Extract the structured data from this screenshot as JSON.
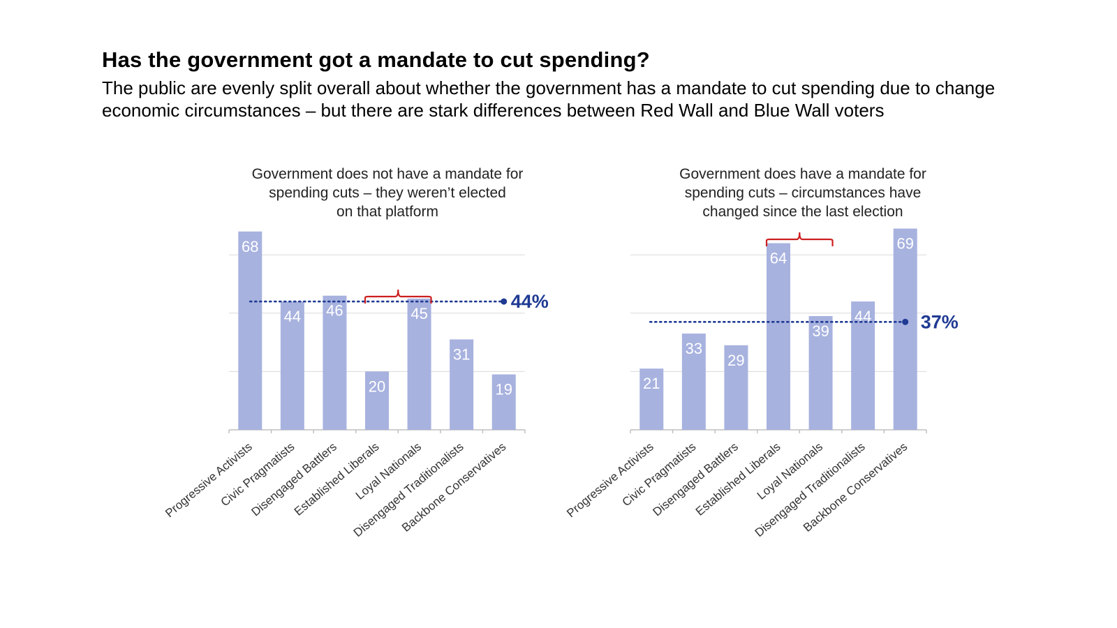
{
  "header": {
    "title": "Has the government got a mandate to cut spending?",
    "subtitle": "The public are evenly split overall about whether the government has a mandate to cut spending due to change economic circumstances – but there are stark differences between Red Wall and Blue Wall voters"
  },
  "colors": {
    "bar": "#a8b2df",
    "average_line": "#1f3a93",
    "bracket": "#cc1f1f",
    "gridline": "#d9d9d9",
    "axis": "#bfbfbf"
  },
  "chart_data": [
    {
      "type": "bar",
      "title_lines": [
        "Government does not have a mandate for",
        "spending cuts – they weren’t elected",
        "on that platform"
      ],
      "categories": [
        "Progressive Activists",
        "Civic Pragmatists",
        "Disengaged Battlers",
        "Established Liberals",
        "Loyal Nationals",
        "Disengaged Traditionalists",
        "Backbone Conservatives"
      ],
      "values": [
        68,
        44,
        46,
        20,
        45,
        31,
        19
      ],
      "average": 44,
      "average_label": "44%",
      "ylim": [
        0,
        70
      ],
      "gridlines": [
        20,
        40,
        60
      ],
      "bracket_categories": [
        3,
        4
      ]
    },
    {
      "type": "bar",
      "title_lines": [
        "Government does have a mandate for",
        "spending cuts – circumstances have",
        "changed since the last election"
      ],
      "categories": [
        "Progressive Activists",
        "Civic Pragmatists",
        "Disengaged Battlers",
        "Established Liberals",
        "Loyal Nationals",
        "Disengaged Traditionalists",
        "Backbone Conservatives"
      ],
      "values": [
        21,
        33,
        29,
        64,
        39,
        44,
        69
      ],
      "average": 37,
      "average_label": "37%",
      "ylim": [
        0,
        70
      ],
      "gridlines": [
        20,
        40,
        60
      ],
      "bracket_categories": [
        3,
        4
      ]
    }
  ]
}
